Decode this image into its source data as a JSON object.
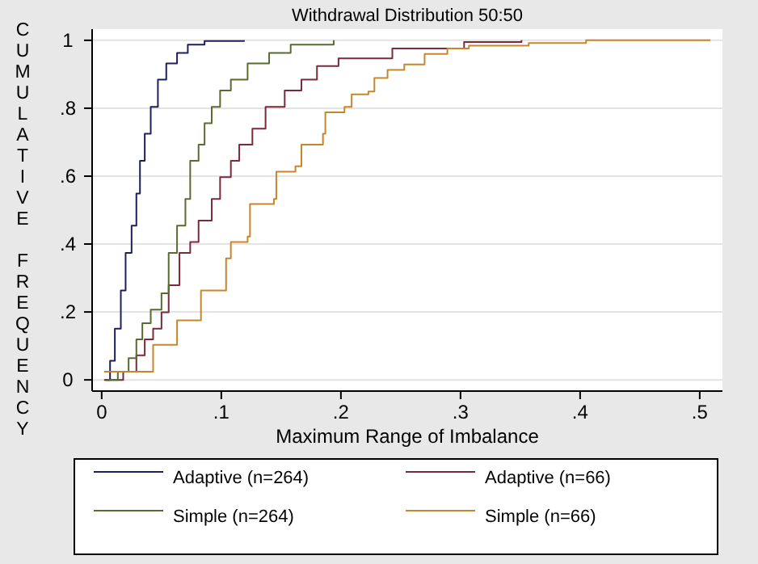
{
  "chart_data": {
    "type": "step",
    "title": "Withdrawal Distribution 50:50",
    "xlabel": "Maximum Range of Imbalance",
    "ylabel": "CUMULATIVE FREQUENCY",
    "xlim": [
      -0.008,
      0.519
    ],
    "ylim": [
      -0.033,
      1.033
    ],
    "xticks": [
      0,
      {
        "value": 0.1,
        "label": ".1"
      },
      {
        "value": 0.2,
        "label": ".2"
      },
      {
        "value": 0.3,
        "label": ".3"
      },
      {
        "value": 0.4,
        "label": ".4"
      },
      {
        "value": 0.5,
        "label": ".5"
      }
    ],
    "yticks": [
      0,
      {
        "value": 0.2,
        "label": ".2"
      },
      {
        "value": 0.4,
        "label": ".4"
      },
      {
        "value": 0.6,
        "label": ".6"
      },
      {
        "value": 0.8,
        "label": ".8"
      },
      1
    ],
    "grid": "y",
    "legend": "bottom",
    "series": [
      {
        "name": "Adaptive (n=264)",
        "color": "#1f1f5e",
        "x": [
          0.003,
          0.007,
          0.011,
          0.016,
          0.02,
          0.025,
          0.029,
          0.032,
          0.036,
          0.041,
          0.047,
          0.054,
          0.063,
          0.072,
          0.086,
          0.119
        ],
        "values": [
          0,
          0.056,
          0.151,
          0.263,
          0.374,
          0.454,
          0.549,
          0.645,
          0.725,
          0.804,
          0.884,
          0.932,
          0.963,
          0.987,
          0.998,
          1
        ]
      },
      {
        "name": "Adaptive (n=66)",
        "color": "#7a2a3a",
        "x": [
          0.002,
          0.018,
          0.029,
          0.036,
          0.043,
          0.05,
          0.056,
          0.065,
          0.074,
          0.081,
          0.092,
          0.099,
          0.108,
          0.115,
          0.126,
          0.137,
          0.153,
          0.167,
          0.18,
          0.198,
          0.243,
          0.303,
          0.351
        ],
        "values": [
          0,
          0.024,
          0.072,
          0.119,
          0.151,
          0.199,
          0.279,
          0.374,
          0.406,
          0.469,
          0.533,
          0.597,
          0.645,
          0.693,
          0.74,
          0.804,
          0.852,
          0.884,
          0.924,
          0.947,
          0.976,
          0.995,
          1
        ]
      },
      {
        "name": "Simple (n=264)",
        "color": "#5a6b30",
        "x": [
          0.004,
          0.0135,
          0.0225,
          0.029,
          0.034,
          0.041,
          0.05,
          0.056,
          0.063,
          0.07,
          0.074,
          0.081,
          0.086,
          0.092,
          0.099,
          0.108,
          0.122,
          0.14,
          0.158,
          0.194
        ],
        "values": [
          0,
          0.024,
          0.064,
          0.119,
          0.167,
          0.207,
          0.255,
          0.374,
          0.454,
          0.533,
          0.645,
          0.693,
          0.756,
          0.804,
          0.852,
          0.884,
          0.932,
          0.963,
          0.987,
          1
        ]
      },
      {
        "name": "Simple (n=66)",
        "color": "#c8862a",
        "x": [
          0.002,
          0.043,
          0.063,
          0.083,
          0.104,
          0.108,
          0.122,
          0.124,
          0.144,
          0.146,
          0.162,
          0.167,
          0.185,
          0.187,
          0.203,
          0.209,
          0.223,
          0.228,
          0.239,
          0.253,
          0.27,
          0.289,
          0.307,
          0.357,
          0.405,
          0.509
        ],
        "values": [
          0.024,
          0.103,
          0.175,
          0.263,
          0.358,
          0.406,
          0.422,
          0.518,
          0.533,
          0.613,
          0.629,
          0.693,
          0.725,
          0.788,
          0.804,
          0.841,
          0.849,
          0.889,
          0.913,
          0.929,
          0.96,
          0.976,
          0.984,
          0.992,
          1,
          1
        ]
      }
    ]
  }
}
